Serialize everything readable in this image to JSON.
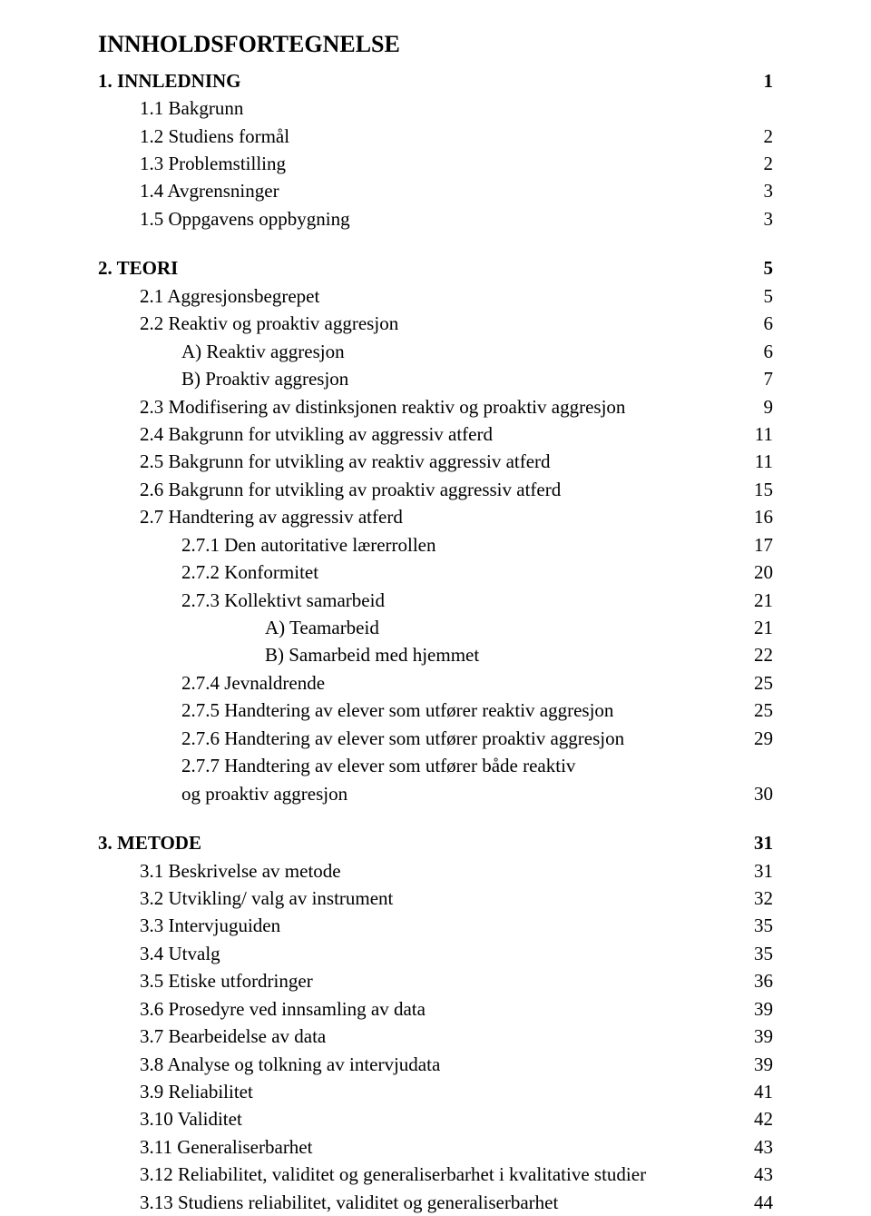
{
  "title": "INNHOLDSFORTEGNELSE",
  "background_color": "#ffffff",
  "text_color": "#000000",
  "font_family": "Times New Roman",
  "base_font_size_pt": 16,
  "title_font_size_pt": 20,
  "entries": [
    {
      "label": "1. INNLEDNING",
      "page": "1",
      "indent": 0,
      "bold": true,
      "section_gap": false
    },
    {
      "label": "1.1 Bakgrunn",
      "page": "",
      "indent": 1,
      "bold": false
    },
    {
      "label": "1.2 Studiens formål",
      "page": "2",
      "indent": 1,
      "bold": false
    },
    {
      "label": "1.3 Problemstilling",
      "page": "2",
      "indent": 1,
      "bold": false
    },
    {
      "label": "1.4 Avgrensninger",
      "page": "3",
      "indent": 1,
      "bold": false
    },
    {
      "label": "1.5 Oppgavens oppbygning",
      "page": "3",
      "indent": 1,
      "bold": false
    },
    {
      "label": "2. TEORI",
      "page": "5",
      "indent": 0,
      "bold": true,
      "section_gap": true
    },
    {
      "label": "2.1 Aggresjonsbegrepet",
      "page": "5",
      "indent": 1,
      "bold": false
    },
    {
      "label": "2.2 Reaktiv og proaktiv aggresjon",
      "page": "6",
      "indent": 1,
      "bold": false
    },
    {
      "label": "A) Reaktiv aggresjon",
      "page": "6",
      "indent": 2,
      "bold": false
    },
    {
      "label": "B) Proaktiv aggresjon",
      "page": "7",
      "indent": 2,
      "bold": false
    },
    {
      "label": "2.3 Modifisering av distinksjonen reaktiv og proaktiv aggresjon",
      "page": "9",
      "indent": 1,
      "bold": false
    },
    {
      "label": "2.4 Bakgrunn for utvikling av aggressiv atferd",
      "page": "11",
      "indent": 1,
      "bold": false
    },
    {
      "label": "2.5 Bakgrunn for utvikling av reaktiv aggressiv atferd",
      "page": "11",
      "indent": 1,
      "bold": false
    },
    {
      "label": "2.6 Bakgrunn for utvikling av proaktiv aggressiv atferd",
      "page": "15",
      "indent": 1,
      "bold": false
    },
    {
      "label": "2.7 Handtering av aggressiv atferd",
      "page": "16",
      "indent": 1,
      "bold": false
    },
    {
      "label": "2.7.1 Den autoritative lærerrollen",
      "page": "17",
      "indent": 2,
      "bold": false
    },
    {
      "label": "2.7.2 Konformitet",
      "page": "20",
      "indent": 2,
      "bold": false
    },
    {
      "label": "2.7.3 Kollektivt samarbeid",
      "page": "21",
      "indent": 2,
      "bold": false
    },
    {
      "label": "A) Teamarbeid",
      "page": "21",
      "indent": 3,
      "bold": false
    },
    {
      "label": "B) Samarbeid med hjemmet",
      "page": "22",
      "indent": 3,
      "bold": false
    },
    {
      "label": "2.7.4 Jevnaldrende",
      "page": "25",
      "indent": 2,
      "bold": false
    },
    {
      "label": "2.7.5 Handtering av elever som utfører reaktiv aggresjon",
      "page": "25",
      "indent": 2,
      "bold": false
    },
    {
      "label": "2.7.6 Handtering av elever som utfører proaktiv aggresjon",
      "page": "29",
      "indent": 2,
      "bold": false
    },
    {
      "label": "2.7.7 Handtering av elever som utfører både reaktiv",
      "page": "",
      "indent": 2,
      "bold": false
    },
    {
      "label": "og proaktiv aggresjon",
      "page": "30",
      "indent": 2,
      "bold": false
    },
    {
      "label": "3. METODE",
      "page": "31",
      "indent": 0,
      "bold": true,
      "section_gap": true
    },
    {
      "label": "3.1 Beskrivelse av metode",
      "page": "31",
      "indent": 1,
      "bold": false
    },
    {
      "label": "3.2 Utvikling/ valg av instrument",
      "page": "32",
      "indent": 1,
      "bold": false
    },
    {
      "label": "3.3 Intervjuguiden",
      "page": "35",
      "indent": 1,
      "bold": false
    },
    {
      "label": "3.4 Utvalg",
      "page": "35",
      "indent": 1,
      "bold": false
    },
    {
      "label": "3.5 Etiske utfordringer",
      "page": "36",
      "indent": 1,
      "bold": false
    },
    {
      "label": "3.6 Prosedyre ved innsamling av data",
      "page": "39",
      "indent": 1,
      "bold": false
    },
    {
      "label": "3.7 Bearbeidelse av data",
      "page": "39",
      "indent": 1,
      "bold": false
    },
    {
      "label": "3.8 Analyse og tolkning av intervjudata",
      "page": "39",
      "indent": 1,
      "bold": false
    },
    {
      "label": "3.9 Reliabilitet",
      "page": "41",
      "indent": 1,
      "bold": false
    },
    {
      "label": "3.10 Validitet",
      "page": "42",
      "indent": 1,
      "bold": false
    },
    {
      "label": "3.11 Generaliserbarhet",
      "page": "43",
      "indent": 1,
      "bold": false
    },
    {
      "label": "3.12 Reliabilitet, validitet og generaliserbarhet i kvalitative studier",
      "page": "43",
      "indent": 1,
      "bold": false
    },
    {
      "label": "3.13 Studiens reliabilitet, validitet og generaliserbarhet",
      "page": "44",
      "indent": 1,
      "bold": false
    }
  ]
}
